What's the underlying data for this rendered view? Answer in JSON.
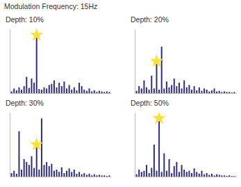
{
  "title": "Modulation Frequency: 15Hz",
  "chart_data": [
    {
      "type": "bar",
      "title": "Depth: 10%",
      "categories": [
        null,
        null,
        null,
        null,
        null,
        null,
        null,
        null,
        null,
        null,
        null,
        null,
        null,
        null,
        null,
        null,
        null,
        null,
        null,
        null,
        null,
        null,
        null,
        null,
        null,
        null,
        null,
        null,
        null,
        null,
        null,
        null,
        null,
        null,
        null,
        null,
        null,
        null,
        null,
        null
      ],
      "series": [
        {
          "type": "bar",
          "color": "#2b2b88",
          "values": [
            3,
            8,
            5,
            10,
            6,
            12,
            28,
            9,
            25,
            18,
            100,
            7,
            6,
            10,
            8,
            14,
            16,
            22,
            10,
            18,
            12,
            20,
            8,
            14,
            6,
            10,
            5,
            18,
            12,
            6,
            4,
            8,
            3,
            5,
            2,
            4,
            3,
            2,
            3,
            2
          ]
        },
        {
          "type": "scatter",
          "marker": "star",
          "color": "#ffe135",
          "values": [
            null,
            null,
            null,
            null,
            null,
            null,
            null,
            null,
            null,
            null,
            100,
            null,
            null,
            null,
            null,
            null,
            null,
            null,
            null,
            null,
            null,
            null,
            null,
            null,
            null,
            null,
            null,
            null,
            null,
            null,
            null,
            null,
            null,
            null,
            null,
            null,
            null,
            null,
            null,
            null
          ]
        }
      ],
      "ylim": [
        0,
        110
      ],
      "tick_labels": false
    },
    {
      "type": "bar",
      "title": "Depth: 20%",
      "categories": [
        null,
        null,
        null,
        null,
        null,
        null,
        null,
        null,
        null,
        null,
        null,
        null,
        null,
        null,
        null,
        null,
        null,
        null,
        null,
        null,
        null,
        null,
        null,
        null,
        null,
        null,
        null,
        null,
        null,
        null,
        null,
        null,
        null,
        null,
        null,
        null,
        null,
        null,
        null,
        null
      ],
      "series": [
        {
          "type": "bar",
          "color": "#2b2b88",
          "values": [
            4,
            12,
            8,
            22,
            10,
            6,
            30,
            8,
            55,
            6,
            80,
            8,
            20,
            10,
            14,
            25,
            12,
            18,
            8,
            22,
            10,
            14,
            6,
            12,
            5,
            10,
            4,
            8,
            6,
            3,
            5,
            8,
            3,
            4,
            2,
            3,
            2,
            2,
            1,
            2
          ]
        },
        {
          "type": "scatter",
          "marker": "star",
          "color": "#ffe135",
          "values": [
            null,
            null,
            null,
            null,
            null,
            null,
            null,
            null,
            55,
            null,
            null,
            null,
            null,
            null,
            null,
            null,
            null,
            null,
            null,
            null,
            null,
            null,
            null,
            null,
            null,
            null,
            null,
            null,
            null,
            null,
            null,
            null,
            null,
            null,
            null,
            null,
            null,
            null,
            null,
            null
          ]
        }
      ],
      "ylim": [
        0,
        110
      ],
      "tick_labels": false
    },
    {
      "type": "bar",
      "title": "Depth: 30%",
      "categories": [
        null,
        null,
        null,
        null,
        null,
        null,
        null,
        null,
        null,
        null,
        null,
        null,
        null,
        null,
        null,
        null,
        null,
        null,
        null,
        null,
        null,
        null,
        null,
        null,
        null,
        null,
        null,
        null,
        null,
        null,
        null,
        null,
        null,
        null,
        null,
        null,
        null,
        null,
        null,
        null
      ],
      "series": [
        {
          "type": "bar",
          "color": "#2b2b88",
          "values": [
            6,
            10,
            5,
            78,
            12,
            30,
            25,
            20,
            35,
            15,
            55,
            12,
            100,
            20,
            25,
            18,
            22,
            10,
            12,
            8,
            16,
            6,
            10,
            14,
            8,
            12,
            5,
            8,
            4,
            6,
            3,
            5,
            2,
            4,
            2,
            3,
            2,
            2,
            1,
            2
          ]
        },
        {
          "type": "scatter",
          "marker": "star",
          "color": "#ffe135",
          "values": [
            null,
            null,
            null,
            null,
            null,
            null,
            null,
            null,
            null,
            null,
            55,
            null,
            null,
            null,
            null,
            null,
            null,
            null,
            null,
            null,
            null,
            null,
            null,
            null,
            null,
            null,
            null,
            null,
            null,
            null,
            null,
            null,
            null,
            null,
            null,
            null,
            null,
            null,
            null,
            null
          ]
        }
      ],
      "ylim": [
        0,
        110
      ],
      "tick_labels": false
    },
    {
      "type": "bar",
      "title": "Depth: 50%",
      "categories": [
        null,
        null,
        null,
        null,
        null,
        null,
        null,
        null,
        null,
        null,
        null,
        null,
        null,
        null,
        null,
        null,
        null,
        null,
        null,
        null,
        null,
        null,
        null,
        null,
        null,
        null,
        null,
        null,
        null,
        null,
        null,
        null,
        null,
        null,
        null,
        null,
        null,
        null,
        null,
        null
      ],
      "series": [
        {
          "type": "bar",
          "color": "#2b2b88",
          "values": [
            4,
            12,
            8,
            10,
            20,
            6,
            15,
            55,
            10,
            100,
            8,
            40,
            10,
            30,
            6,
            18,
            25,
            8,
            20,
            12,
            8,
            10,
            6,
            14,
            8,
            5,
            10,
            4,
            6,
            3,
            5,
            2,
            4,
            3,
            2,
            2,
            1,
            2,
            1,
            1
          ]
        },
        {
          "type": "scatter",
          "marker": "star",
          "color": "#ffe135",
          "values": [
            null,
            null,
            null,
            null,
            null,
            null,
            null,
            null,
            null,
            100,
            null,
            null,
            null,
            null,
            null,
            null,
            null,
            null,
            null,
            null,
            null,
            null,
            null,
            null,
            null,
            null,
            null,
            null,
            null,
            null,
            null,
            null,
            null,
            null,
            null,
            null,
            null,
            null,
            null,
            null
          ]
        }
      ],
      "ylim": [
        0,
        110
      ],
      "tick_labels": false
    }
  ]
}
